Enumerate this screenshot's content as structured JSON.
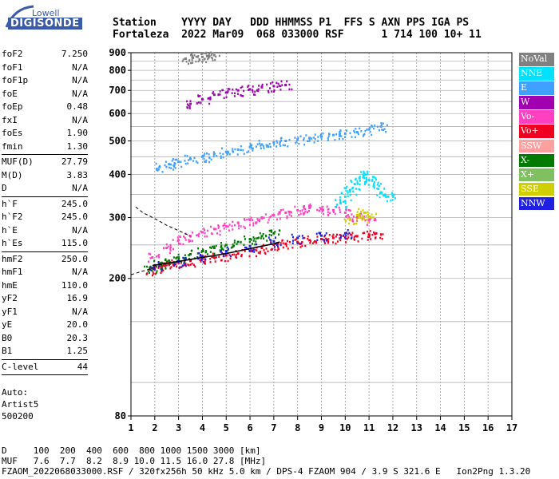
{
  "logo": {
    "line1": "Lowell",
    "line2": "DIGISONDE"
  },
  "header": {
    "line1": "Station    YYYY DAY   DDD HHMMSS P1  FFS S AXN PPS IGA PS",
    "line2": "Fortaleza  2022 Mar09  068 033000 RSF      1 714 100 10+ 11"
  },
  "params": [
    {
      "label": "foF2",
      "value": "7.250"
    },
    {
      "label": "foF1",
      "value": "N/A"
    },
    {
      "label": "foF1p",
      "value": "N/A"
    },
    {
      "label": "foE",
      "value": "N/A"
    },
    {
      "label": "foEp",
      "value": "0.48"
    },
    {
      "label": "fxI",
      "value": "N/A"
    },
    {
      "label": "foEs",
      "value": "1.90"
    },
    {
      "label": "fmin",
      "value": "1.30"
    },
    {
      "label": "MUF(D)",
      "value": "27.79"
    },
    {
      "label": "M(D)",
      "value": "3.83"
    },
    {
      "label": "D",
      "value": "N/A"
    },
    {
      "label": "h`F",
      "value": "245.0"
    },
    {
      "label": "h`F2",
      "value": "245.0"
    },
    {
      "label": "h`E",
      "value": "N/A"
    },
    {
      "label": "h`Es",
      "value": "115.0"
    },
    {
      "label": "hmF2",
      "value": "250.0"
    },
    {
      "label": "hmF1",
      "value": "N/A"
    },
    {
      "label": "hmE",
      "value": "110.0"
    },
    {
      "label": "yF2",
      "value": "16.9"
    },
    {
      "label": "yF1",
      "value": "N/A"
    },
    {
      "label": "yE",
      "value": "20.0"
    },
    {
      "label": "B0",
      "value": "20.3"
    },
    {
      "label": "B1",
      "value": "1.25"
    },
    {
      "label": "C-level",
      "value": "44"
    }
  ],
  "auto": {
    "line1": "Auto:",
    "line2": "Artist5",
    "line3": "500200"
  },
  "legend": [
    {
      "label": "NoVal",
      "color": "#808080"
    },
    {
      "label": "NNE",
      "color": "#00e0ff"
    },
    {
      "label": "E",
      "color": "#40a0ff"
    },
    {
      "label": "W",
      "color": "#a000b0"
    },
    {
      "label": "Vo-",
      "color": "#ff40c0"
    },
    {
      "label": "Vo+",
      "color": "#f00020"
    },
    {
      "label": "SSW",
      "color": "#ffa0a0"
    },
    {
      "label": "X-",
      "color": "#007a00"
    },
    {
      "label": "X+",
      "color": "#80c060"
    },
    {
      "label": "SSE",
      "color": "#d0d000"
    },
    {
      "label": "NNW",
      "color": "#2020e0"
    }
  ],
  "footer": {
    "line1": "D     100  200  400  600  800 1000 1500 3000 [km]",
    "line2": "MUF   7.6  7.7  8.2  8.9 10.0 11.5 16.0 27.8 [MHz]",
    "line3": "FZAOM_2022068033000.RSF / 320fx256h 50 kHz 5.0 km / DPS-4 FZAOM 904 / 3.9 S 321.6 E   Ion2Png 1.3.20"
  },
  "chart_data": {
    "type": "scatter",
    "x_ticks": [
      1,
      2,
      3,
      4,
      5,
      6,
      7,
      8,
      9,
      10,
      11,
      12,
      13,
      14,
      15,
      16,
      17
    ],
    "y_ticks": [
      80,
      200,
      300,
      400,
      500,
      600,
      700,
      800,
      900
    ],
    "xlim": [
      1,
      17
    ],
    "ylim": [
      80,
      900
    ],
    "grid": true,
    "series": [
      {
        "name": "Vo+",
        "color": "#f00020",
        "x": [
          1.8,
          2.0,
          2.3,
          2.6,
          3.0,
          3.5,
          4.0,
          4.5,
          5.0,
          5.5,
          6.0,
          6.5,
          7.0,
          7.5,
          8.0,
          8.5,
          9.0,
          9.5,
          10.0,
          10.5,
          11.0,
          11.3
        ],
        "y": [
          212,
          214,
          217,
          220,
          222,
          225,
          228,
          230,
          233,
          236,
          240,
          245,
          250,
          252,
          255,
          258,
          260,
          262,
          263,
          265,
          268,
          270
        ]
      },
      {
        "name": "Vo-",
        "color": "#ff40c0",
        "x": [
          1.9,
          2.5,
          3.0,
          3.5,
          4.0,
          4.5,
          5.0,
          5.5,
          6.0,
          6.5,
          7.0,
          7.5,
          8.0,
          8.5,
          9.0,
          9.5,
          10.0,
          10.5,
          11.0
        ],
        "y": [
          230,
          245,
          258,
          265,
          272,
          278,
          283,
          290,
          295,
          300,
          305,
          310,
          315,
          320,
          318,
          315,
          310,
          300,
          295
        ]
      },
      {
        "name": "E",
        "color": "#40a0ff",
        "x": [
          2.2,
          2.6,
          3.0,
          3.5,
          4.0,
          4.5,
          5.0,
          5.5,
          6.0,
          6.5,
          7.0,
          7.5,
          8.0,
          8.5,
          9.0,
          9.5,
          10.0,
          10.5,
          11.0,
          11.5
        ],
        "y": [
          420,
          428,
          435,
          443,
          450,
          458,
          465,
          472,
          480,
          488,
          495,
          500,
          505,
          510,
          515,
          520,
          525,
          530,
          540,
          550
        ]
      },
      {
        "name": "NNE",
        "color": "#00e0ff",
        "x": [
          9.8,
          10.0,
          10.2,
          10.4,
          10.6,
          10.8,
          11.0,
          11.2,
          11.5,
          11.8
        ],
        "y": [
          330,
          345,
          360,
          375,
          390,
          400,
          385,
          370,
          355,
          345
        ]
      },
      {
        "name": "SSE",
        "color": "#d0d000",
        "x": [
          10.2,
          10.5,
          10.8,
          11.0
        ],
        "y": [
          295,
          305,
          310,
          300
        ]
      },
      {
        "name": "W",
        "color": "#a000b0",
        "x": [
          3.5,
          4.0,
          4.5,
          5.0,
          5.5,
          6.0,
          6.5,
          7.0,
          7.5
        ],
        "y": [
          640,
          660,
          680,
          690,
          700,
          705,
          715,
          720,
          725
        ]
      },
      {
        "name": "NoVal",
        "color": "#808080",
        "x": [
          3.3,
          3.6,
          4.0,
          4.2,
          4.5
        ],
        "y": [
          865,
          870,
          875,
          880,
          885
        ]
      },
      {
        "name": "X-",
        "color": "#007a00",
        "x": [
          1.8,
          2.2,
          2.6,
          3.0,
          3.5,
          4.0,
          4.5,
          5.0,
          5.5,
          6.0,
          6.5,
          7.0
        ],
        "y": [
          215,
          220,
          225,
          230,
          235,
          240,
          245,
          250,
          255,
          260,
          265,
          270
        ]
      },
      {
        "name": "NNW",
        "color": "#2020e0",
        "x": [
          2.0,
          3.0,
          4.0,
          5.0,
          6.0,
          7.0,
          8.0,
          9.0,
          10.0
        ],
        "y": [
          218,
          224,
          232,
          240,
          248,
          256,
          262,
          266,
          270
        ]
      }
    ],
    "trace_lines": [
      {
        "style": "solid",
        "x": [
          1.9,
          2.5,
          3.0,
          3.5,
          4.0,
          4.5,
          5.0,
          5.5,
          6.0,
          6.5,
          7.0,
          7.25
        ],
        "y": [
          218,
          221,
          224,
          227,
          230,
          233,
          236,
          240,
          244,
          248,
          252,
          255
        ]
      },
      {
        "style": "dashed",
        "x": [
          1.2,
          1.5,
          2.0,
          2.5,
          3.0,
          3.5
        ],
        "y": [
          322,
          310,
          298,
          285,
          275,
          265
        ]
      },
      {
        "style": "dashed",
        "x": [
          1.0,
          1.5,
          2.0
        ],
        "y": [
          205,
          210,
          215
        ]
      }
    ]
  }
}
